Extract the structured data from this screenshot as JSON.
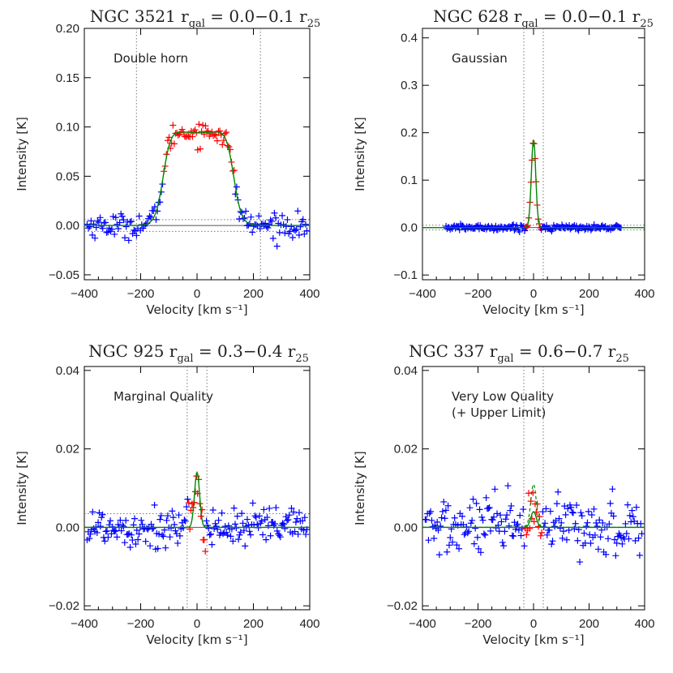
{
  "colors": {
    "data": "#0000ff",
    "fit_window": "#ff0000",
    "fit": "#008800",
    "axes": "#000000",
    "guides": "#777777"
  },
  "chart_data": [
    {
      "type": "scatter",
      "galaxy": "NGC 3521",
      "title_main": "NGC 3521 r",
      "title_sub": "gal",
      "title_mid": " = 0.0−0.1 r",
      "title_sub2": "25",
      "annotation": [
        "Double horn"
      ],
      "xlabel": "Velocity [km s⁻¹]",
      "ylabel": "Intensity [K]",
      "xlim": [
        -400,
        400
      ],
      "ylim": [
        -0.055,
        0.2
      ],
      "xticks": [
        -400,
        -200,
        0,
        200,
        400
      ],
      "xtick_labels": [
        "−400",
        "−200",
        "0",
        "200",
        "400"
      ],
      "yticks": [
        -0.05,
        0.0,
        0.05,
        0.1,
        0.15,
        0.2
      ],
      "ytick_labels": [
        "−0.05",
        "0.00",
        "0.05",
        "0.10",
        "0.15",
        "0.20"
      ],
      "vlines": [
        -215,
        225
      ],
      "hlines": [
        0.0,
        0.006,
        -0.006
      ],
      "profile": {
        "shape": "horn",
        "amp": 0.1,
        "center": 5,
        "halfwidth": 125,
        "edge": 14
      },
      "noise": 0.006,
      "x_range": [
        -390,
        390
      ],
      "n_points": 170,
      "fit_window": [
        -120,
        135
      ]
    },
    {
      "type": "scatter",
      "galaxy": "NGC 628",
      "title_main": "NGC 628 r",
      "title_sub": "gal",
      "title_mid": " = 0.0−0.1 r",
      "title_sub2": "25",
      "annotation": [
        "Gaussian"
      ],
      "xlabel": "Velocity [km s⁻¹]",
      "ylabel": "Intensity [K]",
      "xlim": [
        -400,
        400
      ],
      "ylim": [
        -0.11,
        0.42
      ],
      "xticks": [
        -400,
        -200,
        0,
        200,
        400
      ],
      "xtick_labels": [
        "−400",
        "−200",
        "0",
        "200",
        "400"
      ],
      "yticks": [
        -0.1,
        0.0,
        0.1,
        0.2,
        0.3,
        0.4
      ],
      "ytick_labels": [
        "−0.1",
        "0.0",
        "0.1",
        "0.2",
        "0.3",
        "0.4"
      ],
      "vlines": [
        -35,
        35
      ],
      "hlines": [
        0.0,
        0.005,
        -0.005
      ],
      "profile": {
        "shape": "gauss",
        "amp": 0.185,
        "center": 0,
        "sigma": 8
      },
      "noise": 0.003,
      "x_range": [
        -315,
        315
      ],
      "n_points": 170,
      "fit_window": [
        -25,
        25
      ]
    },
    {
      "type": "scatter",
      "galaxy": "NGC 925",
      "title_main": "NGC 925 r",
      "title_sub": "gal",
      "title_mid": " = 0.3−0.4 r",
      "title_sub2": "25",
      "annotation": [
        "Marginal Quality"
      ],
      "xlabel": "Velocity [km s⁻¹]",
      "ylabel": "Intensity [K]",
      "xlim": [
        -400,
        400
      ],
      "ylim": [
        -0.021,
        0.041
      ],
      "xticks": [
        -400,
        -200,
        0,
        200,
        400
      ],
      "xtick_labels": [
        "−400",
        "−200",
        "0",
        "200",
        "400"
      ],
      "yticks": [
        -0.02,
        0.0,
        0.02,
        0.04
      ],
      "ytick_labels": [
        "−0.02",
        "0.00",
        "0.02",
        "0.04"
      ],
      "vlines": [
        -35,
        35
      ],
      "hlines": [
        0.0,
        0.0035
      ],
      "profile": {
        "shape": "gauss",
        "amp": 0.014,
        "center": 0,
        "sigma": 9
      },
      "noise": 0.0028,
      "x_range": [
        -390,
        390
      ],
      "n_points": 200,
      "fit_window": [
        -30,
        30
      ]
    },
    {
      "type": "scatter",
      "galaxy": "NGC 337",
      "title_main": "NGC 337 r",
      "title_sub": "gal",
      "title_mid": " = 0.6−0.7 r",
      "title_sub2": "25",
      "annotation": [
        "Very Low Quality",
        "(+ Upper Limit)"
      ],
      "xlabel": "Velocity [km s⁻¹]",
      "ylabel": "Intensity [K]",
      "xlim": [
        -400,
        400
      ],
      "ylim": [
        -0.021,
        0.041
      ],
      "xticks": [
        -400,
        -200,
        0,
        200,
        400
      ],
      "xtick_labels": [
        "−400",
        "−200",
        "0",
        "200",
        "400"
      ],
      "yticks": [
        -0.02,
        0.0,
        0.02,
        0.04
      ],
      "ytick_labels": [
        "−0.02",
        "0.00",
        "0.02",
        "0.04"
      ],
      "vlines": [
        -35,
        35
      ],
      "hlines": [
        0.0
      ],
      "profile": {
        "shape": "gauss",
        "amp": 0.004,
        "center": 0,
        "sigma": 10
      },
      "upper_limit_amp": 0.011,
      "noise": 0.0038,
      "x_range": [
        -390,
        390
      ],
      "n_points": 200,
      "fit_window": [
        -30,
        30
      ]
    }
  ]
}
